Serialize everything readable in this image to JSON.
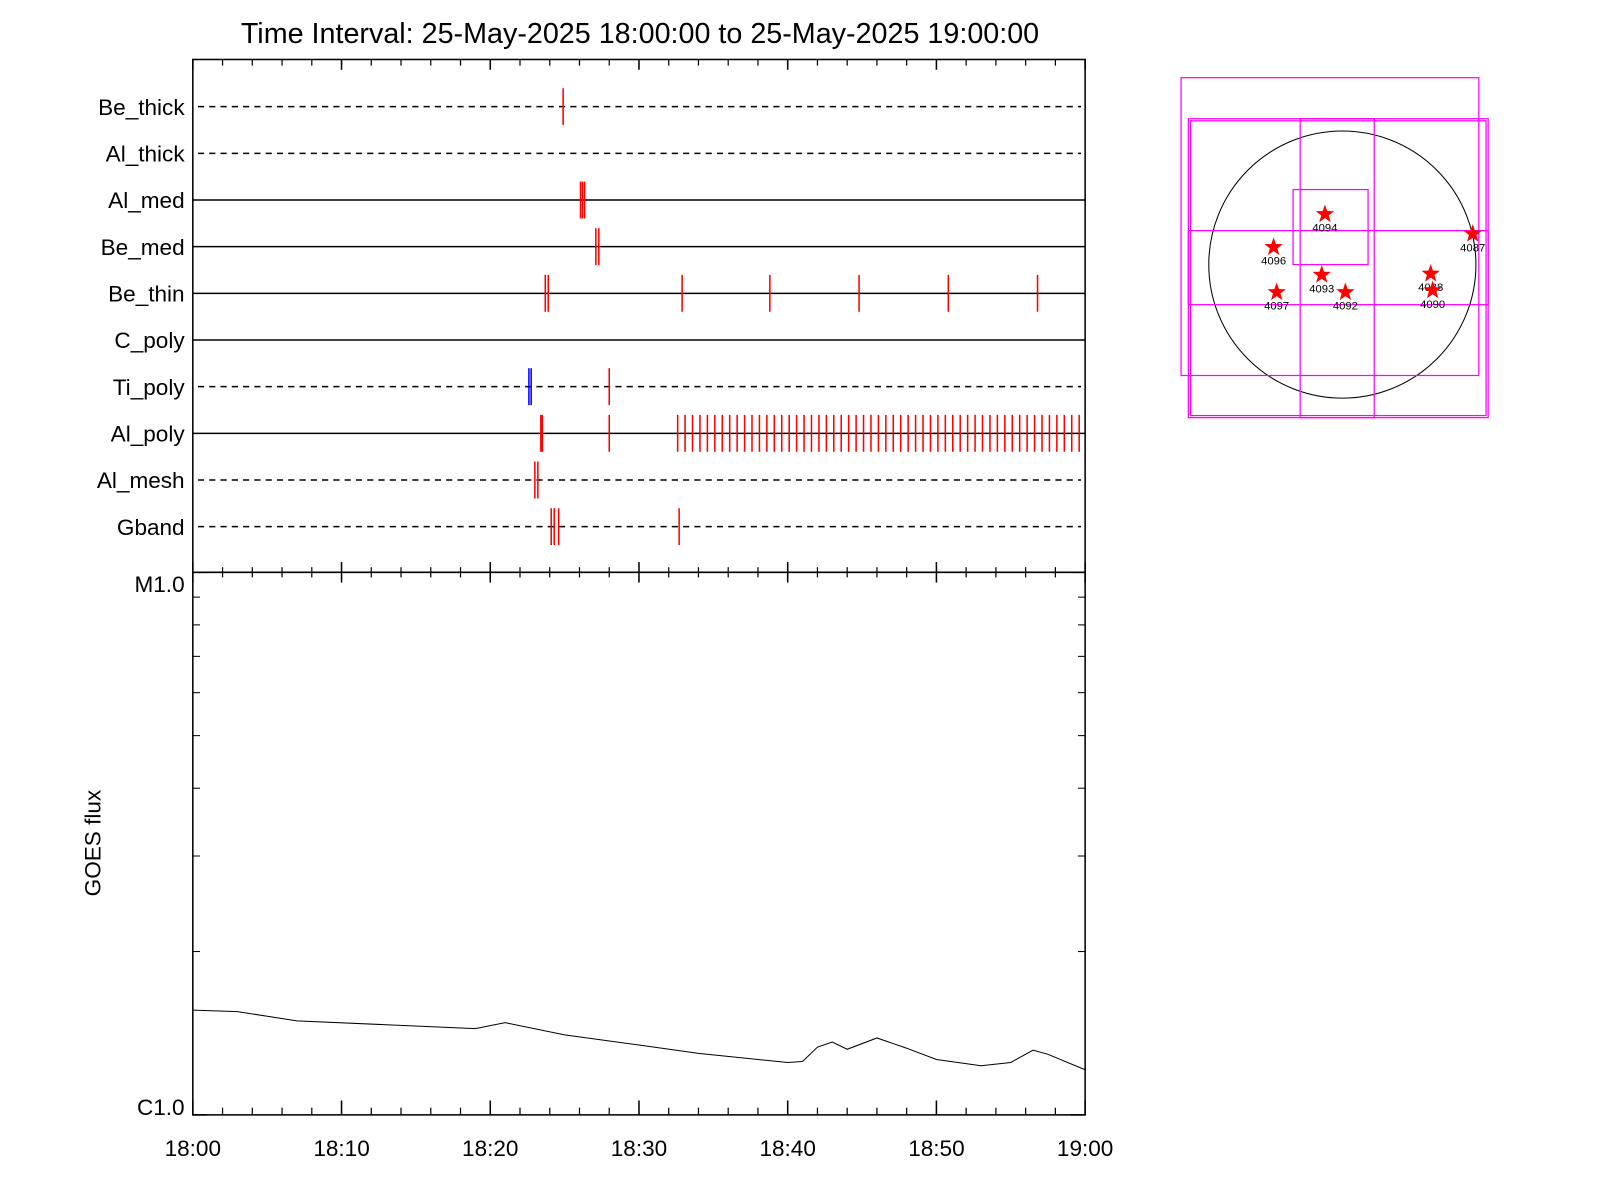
{
  "chart_data": [
    {
      "type": "events",
      "title": "Time Interval: 25-May-2025 18:00:00 to 25-May-2025 19:00:00",
      "xlim": [
        0,
        60
      ],
      "rows": [
        {
          "name": "Be_thick",
          "line": "dashed",
          "series": [
            {
              "color": "#ff0000",
              "values": [
                24.9
              ]
            }
          ]
        },
        {
          "name": "Al_thick",
          "line": "dashed",
          "series": []
        },
        {
          "name": "Al_med",
          "line": "solid",
          "series": [
            {
              "color": "#ff0000",
              "values": [
                26.07,
                26.2,
                26.34
              ]
            }
          ]
        },
        {
          "name": "Be_med",
          "line": "solid",
          "series": [
            {
              "color": "#ff0000",
              "values": [
                27.1,
                27.3
              ]
            }
          ]
        },
        {
          "name": "Be_thin",
          "line": "solid",
          "series": [
            {
              "color": "#ff0000",
              "values": [
                23.7,
                23.9,
                32.9,
                38.8,
                44.8,
                50.8,
                56.8
              ]
            }
          ]
        },
        {
          "name": "C_poly",
          "line": "solid",
          "series": []
        },
        {
          "name": "Ti_poly",
          "line": "dashed",
          "series": [
            {
              "color": "#0000ff",
              "values": [
                22.6,
                22.75
              ]
            },
            {
              "color": "#ff0000",
              "values": [
                28.0
              ]
            }
          ]
        },
        {
          "name": "Al_poly",
          "line": "solid",
          "series": [
            {
              "color": "#ff0000",
              "values": [
                23.4,
                23.5,
                28.0,
                32.6,
                33.1,
                33.6,
                34.1,
                34.6,
                35.1,
                35.6,
                36.1,
                36.6,
                37.1,
                37.6,
                38.1,
                38.6,
                39.1,
                39.6,
                40.1,
                40.6,
                41.1,
                41.6,
                42.1,
                42.6,
                43.1,
                43.6,
                44.1,
                44.6,
                45.1,
                45.6,
                46.1,
                46.6,
                47.1,
                47.6,
                48.1,
                48.6,
                49.1,
                49.6,
                50.1,
                50.6,
                51.1,
                51.6,
                52.1,
                52.6,
                53.1,
                53.6,
                54.1,
                54.6,
                55.1,
                55.6,
                56.1,
                56.6,
                57.1,
                57.6,
                58.1,
                58.6,
                59.1,
                59.6
              ]
            }
          ]
        },
        {
          "name": "Al_mesh",
          "line": "dashed",
          "series": [
            {
              "color": "#ff0000",
              "values": [
                23.0,
                23.2
              ]
            }
          ]
        },
        {
          "name": "Gband",
          "line": "dashed",
          "series": [
            {
              "color": "#ff0000",
              "values": [
                24.1,
                24.3,
                24.6,
                32.7
              ]
            }
          ]
        }
      ]
    },
    {
      "type": "line",
      "ylabel": "GOES flux",
      "log_y": true,
      "ylim": [
        1e-06,
        1e-05
      ],
      "yticks": [
        {
          "value": 1e-06,
          "label": "C1.0"
        },
        {
          "value": 1e-05,
          "label": "M1.0"
        }
      ],
      "minor_yticks": [
        2e-06,
        3e-06,
        4e-06,
        5e-06,
        6e-06,
        7e-06,
        8e-06,
        9e-06
      ],
      "xlim": [
        0,
        60
      ],
      "xticks": [
        {
          "value": 0,
          "label": "18:00"
        },
        {
          "value": 10,
          "label": "18:10"
        },
        {
          "value": 20,
          "label": "18:20"
        },
        {
          "value": 30,
          "label": "18:30"
        },
        {
          "value": 40,
          "label": "18:40"
        },
        {
          "value": 50,
          "label": "18:50"
        },
        {
          "value": 60,
          "label": "19:00"
        }
      ],
      "minor_xticks": [
        2,
        4,
        6,
        8,
        12,
        14,
        16,
        18,
        22,
        24,
        26,
        28,
        32,
        34,
        36,
        38,
        42,
        44,
        46,
        48,
        52,
        54,
        56,
        58
      ],
      "color": "#000000",
      "x": [
        0,
        3,
        7,
        13,
        19,
        21,
        25,
        30,
        34,
        40,
        41,
        42,
        43,
        44,
        46,
        48,
        50,
        53,
        55,
        56.5,
        57.5,
        60
      ],
      "values": [
        1.56e-06,
        1.55e-06,
        1.49e-06,
        1.466e-06,
        1.442e-06,
        1.479e-06,
        1.404e-06,
        1.345e-06,
        1.298e-06,
        1.249e-06,
        1.254e-06,
        1.333e-06,
        1.362e-06,
        1.321e-06,
        1.386e-06,
        1.327e-06,
        1.265e-06,
        1.232e-06,
        1.249e-06,
        1.316e-06,
        1.293e-06,
        1.211e-06
      ]
    },
    {
      "type": "map",
      "xlim": [
        -1200,
        1100
      ],
      "ylim": [
        -1150,
        1400
      ],
      "disk_radius": 960,
      "box_color": "#ff00ff",
      "star_color": "#ff0000",
      "boxes": [
        [
          -1159,
          -797,
          981,
          1343
        ],
        [
          -1107,
          -1100,
          1048,
          1048
        ],
        [
          -1092,
          -1085,
          1033,
          1033
        ],
        [
          -354,
          0,
          185,
          539
        ],
        [
          -303,
          -1100,
          229,
          1048
        ],
        [
          -1107,
          -288,
          1048,
          244
        ]
      ],
      "stars": [
        {
          "label": "4094",
          "x": -125,
          "y": 362
        },
        {
          "label": "4087",
          "x": 937,
          "y": 221
        },
        {
          "label": "4096",
          "x": -494,
          "y": 125
        },
        {
          "label": "4093",
          "x": -148,
          "y": -74
        },
        {
          "label": "4088",
          "x": 635,
          "y": -66
        },
        {
          "label": "4097",
          "x": -472,
          "y": -199
        },
        {
          "label": "4092",
          "x": 22,
          "y": -199
        },
        {
          "label": "4090",
          "x": 649,
          "y": -185
        }
      ]
    }
  ]
}
